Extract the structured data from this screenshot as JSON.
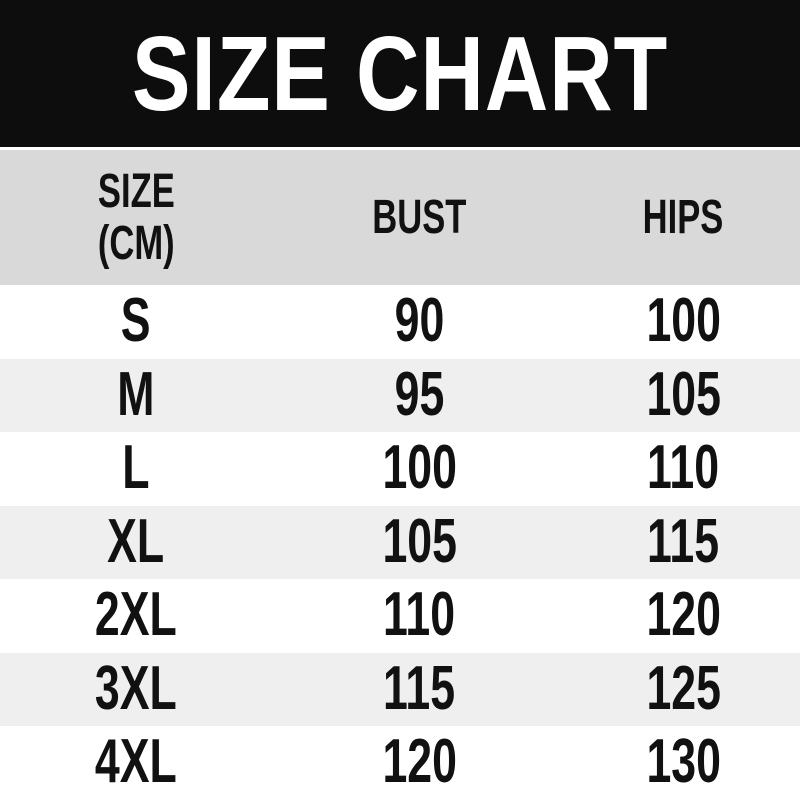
{
  "title": "SIZE CHART",
  "table": {
    "header": {
      "size_line1": "SIZE",
      "size_line2": "(CM)",
      "bust": "BUST",
      "hips": "HIPS"
    },
    "rows": [
      {
        "size": "S",
        "bust": "90",
        "hips": "100"
      },
      {
        "size": "M",
        "bust": "95",
        "hips": "105"
      },
      {
        "size": "L",
        "bust": "100",
        "hips": "110"
      },
      {
        "size": "XL",
        "bust": "105",
        "hips": "115"
      },
      {
        "size": "2XL",
        "bust": "110",
        "hips": "120"
      },
      {
        "size": "3XL",
        "bust": "115",
        "hips": "125"
      },
      {
        "size": "4XL",
        "bust": "120",
        "hips": "130"
      }
    ]
  },
  "colors": {
    "banner_bg": "#0d0d0d",
    "banner_text": "#ffffff",
    "header_bg": "#d9d9d9",
    "stripe_bg": "#efefef",
    "row_bg": "#ffffff",
    "text": "#111111"
  },
  "chart_data": {
    "type": "table",
    "title": "SIZE CHART",
    "columns": [
      "SIZE (CM)",
      "BUST",
      "HIPS"
    ],
    "rows": [
      [
        "S",
        90,
        100
      ],
      [
        "M",
        95,
        105
      ],
      [
        "L",
        100,
        110
      ],
      [
        "XL",
        105,
        115
      ],
      [
        "2XL",
        110,
        120
      ],
      [
        "3XL",
        115,
        125
      ],
      [
        "4XL",
        120,
        130
      ]
    ],
    "layout": "striped rows, bold condensed sans, black title banner on top"
  }
}
